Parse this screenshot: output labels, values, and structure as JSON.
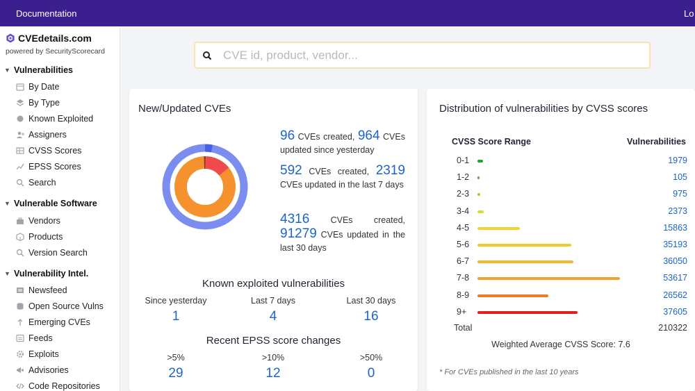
{
  "topbar": {
    "documentation": "Documentation",
    "login": "Lo"
  },
  "brand": {
    "name": "CVEdetails.com",
    "powered": "powered by SecurityScorecard"
  },
  "sidebar": {
    "sections": [
      {
        "label": "Vulnerabilities",
        "items": [
          "By Date",
          "By Type",
          "Known Exploited",
          "Assigners",
          "CVSS Scores",
          "EPSS Scores",
          "Search"
        ]
      },
      {
        "label": "Vulnerable Software",
        "items": [
          "Vendors",
          "Products",
          "Version Search"
        ]
      },
      {
        "label": "Vulnerability Intel.",
        "items": [
          "Newsfeed",
          "Open Source Vulns",
          "Emerging CVEs",
          "Feeds",
          "Exploits",
          "Advisories",
          "Code Repositories"
        ]
      }
    ]
  },
  "search": {
    "placeholder": "CVE id, product, vendor..."
  },
  "new_updated": {
    "title": "New/Updated CVEs",
    "stats": [
      {
        "created": "96",
        "created_text": "CVEs created,",
        "updated": "964",
        "updated_text": "CVEs updated since yesterday"
      },
      {
        "created": "592",
        "created_text": "CVEs created,",
        "updated": "2319",
        "updated_text": "CVEs updated in the last 7 days"
      },
      {
        "created": "4316",
        "created_text": "CVEs created,",
        "updated": "91279",
        "updated_text": "CVEs updated in the last 30 days"
      }
    ]
  },
  "known_exploited": {
    "title": "Known exploited vulnerabilities",
    "columns": [
      {
        "label": "Since yesterday",
        "value": "1"
      },
      {
        "label": "Last 7 days",
        "value": "4"
      },
      {
        "label": "Last 30 days",
        "value": "16"
      }
    ]
  },
  "epss": {
    "title": "Recent EPSS score changes",
    "columns": [
      {
        "label": ">5%",
        "value": "29"
      },
      {
        "label": ">10%",
        "value": "12"
      },
      {
        "label": ">50%",
        "value": "0"
      }
    ]
  },
  "distribution": {
    "title": "Distribution of vulnerabilities by CVSS scores",
    "col_range": "CVSS Score Range",
    "col_vulns": "Vulnerabilities",
    "rows": [
      {
        "range": "0-1",
        "value": "1979",
        "count": 1979,
        "color": "#22a32a"
      },
      {
        "range": "1-2",
        "value": "105",
        "count": 105,
        "color": "#4cb82c"
      },
      {
        "range": "2-3",
        "value": "975",
        "count": 975,
        "color": "#a4d62b"
      },
      {
        "range": "3-4",
        "value": "2373",
        "count": 2373,
        "color": "#d6e02c"
      },
      {
        "range": "4-5",
        "value": "15863",
        "count": 15863,
        "color": "#f1d532"
      },
      {
        "range": "5-6",
        "value": "35193",
        "count": 35193,
        "color": "#f2c82a"
      },
      {
        "range": "6-7",
        "value": "36050",
        "count": 36050,
        "color": "#f0b92b"
      },
      {
        "range": "7-8",
        "value": "53617",
        "count": 53617,
        "color": "#f0a22e"
      },
      {
        "range": "8-9",
        "value": "26562",
        "count": 26562,
        "color": "#ec7e22"
      },
      {
        "range": "9+",
        "value": "37605",
        "count": 37605,
        "color": "#e01f1f"
      }
    ],
    "total_label": "Total",
    "total_value": "210322",
    "weighted_avg": "Weighted Average CVSS Score: 7.6",
    "note": "* For CVEs published in the last 10 years"
  },
  "colors": {
    "accent": "#1d64c8",
    "topbar": "#3b1f8e"
  }
}
